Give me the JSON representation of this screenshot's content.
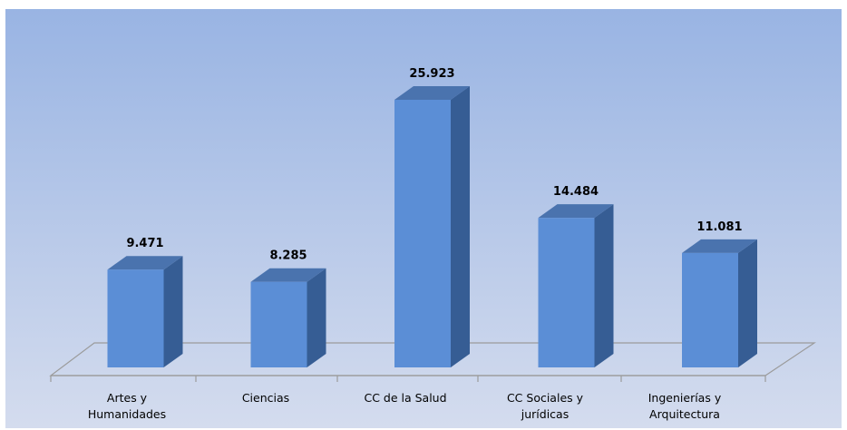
{
  "chart_data": {
    "type": "bar",
    "categories": [
      [
        "Artes y",
        "Humanidades"
      ],
      [
        "Ciencias"
      ],
      [
        "CC de la Salud"
      ],
      [
        "CC Sociales y",
        "jurídicas"
      ],
      [
        "Ingenierías y",
        "Arquitectura"
      ]
    ],
    "values": [
      9471,
      8285,
      25923,
      14484,
      11081
    ],
    "value_labels": [
      "9.471",
      "8.285",
      "25.923",
      "14.484",
      "11.081"
    ],
    "title": "",
    "xlabel": "",
    "ylabel": "",
    "ylim": [
      0,
      25923
    ],
    "grid": false,
    "legend": "none",
    "colors": {
      "bar_front": "#5B8ED6",
      "bar_side": "#365D94",
      "bar_top": "#4A73AE",
      "bg_top": "#99B4E3",
      "bg_bottom": "#D4DCEE",
      "floor_line": "#9B9B9B"
    }
  }
}
